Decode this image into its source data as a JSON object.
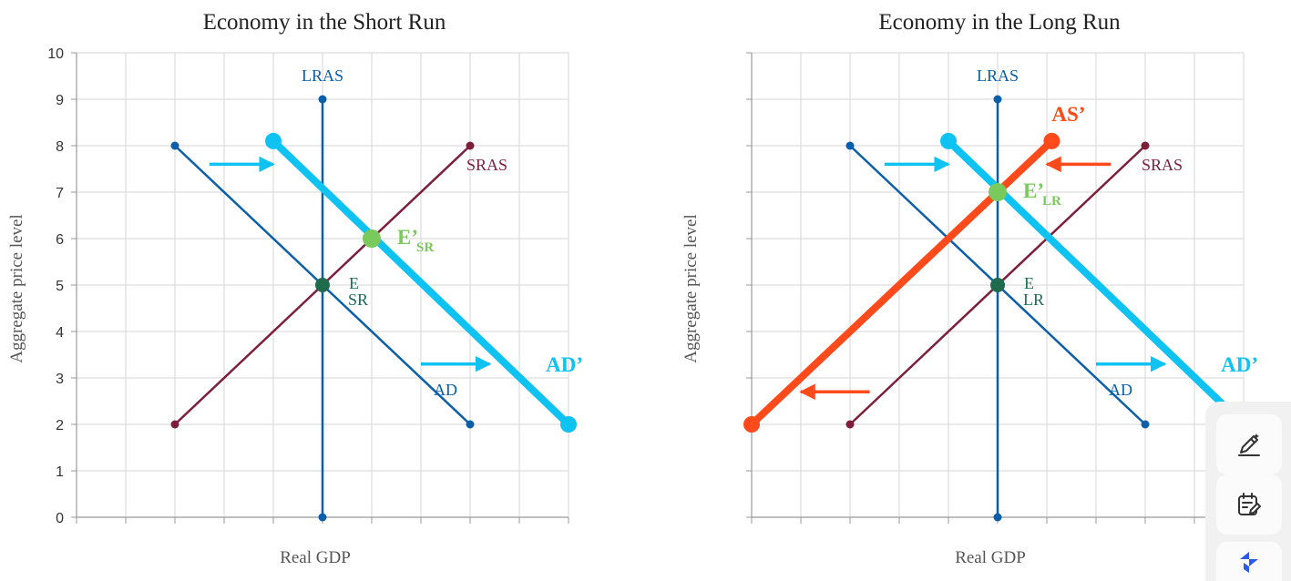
{
  "colors": {
    "ad": "#0a5fa8",
    "lras": "#0a5fa8",
    "sras": "#7d1f3a",
    "ad_shift": "#0ec2f2",
    "as_shift": "#ff4a1c",
    "eq_short": "#1f6b4e",
    "eq_new": "#7ac95c",
    "grid": "#d6d6d6"
  },
  "chart_data": [
    {
      "type": "line",
      "title": "Economy in the Short Run",
      "xlabel": "Real GDP",
      "ylabel": "Aggregate price level",
      "ylim": [
        0,
        10
      ],
      "xlim": [
        0,
        10
      ],
      "y_ticks": [
        "0",
        "1",
        "2",
        "3",
        "4",
        "5",
        "6",
        "7",
        "8",
        "9",
        "10"
      ],
      "grid": true,
      "series": [
        {
          "name": "LRAS",
          "points": [
            [
              5,
              0
            ],
            [
              5,
              9
            ]
          ],
          "color": "lras"
        },
        {
          "name": "SRAS",
          "points": [
            [
              2,
              2
            ],
            [
              8,
              8
            ]
          ],
          "color": "sras"
        },
        {
          "name": "AD",
          "points": [
            [
              2,
              8
            ],
            [
              8,
              2
            ]
          ],
          "color": "ad"
        },
        {
          "name": "AD’",
          "points": [
            [
              4,
              8.1
            ],
            [
              10,
              2
            ]
          ],
          "color": "ad_shift",
          "bold": true
        }
      ],
      "equilibria": [
        {
          "label": "E",
          "sub": "SR",
          "x": 5,
          "y": 5,
          "color": "eq_short"
        },
        {
          "label": "E’",
          "sub": "SR",
          "x": 6,
          "y": 6,
          "color": "eq_new",
          "bold": true
        }
      ],
      "arrows": [
        {
          "from": [
            2.7,
            7.6
          ],
          "to": [
            4.0,
            7.6
          ],
          "color": "ad_shift"
        },
        {
          "from": [
            7.0,
            3.3
          ],
          "to": [
            8.4,
            3.3
          ],
          "color": "ad_shift"
        }
      ]
    },
    {
      "type": "line",
      "title": "Economy in the Long Run",
      "xlabel": "Real GDP",
      "ylabel": "Aggregate price level",
      "ylim": [
        0,
        10
      ],
      "xlim": [
        0,
        10
      ],
      "grid": true,
      "series": [
        {
          "name": "LRAS",
          "points": [
            [
              5,
              0
            ],
            [
              5,
              9
            ]
          ],
          "color": "lras"
        },
        {
          "name": "SRAS",
          "points": [
            [
              2,
              2
            ],
            [
              8,
              8
            ]
          ],
          "color": "sras"
        },
        {
          "name": "AD",
          "points": [
            [
              2,
              8
            ],
            [
              8,
              2
            ]
          ],
          "color": "ad"
        },
        {
          "name": "AD’",
          "points": [
            [
              4,
              8.1
            ],
            [
              10,
              2
            ]
          ],
          "color": "ad_shift",
          "bold": true
        },
        {
          "name": "AS’",
          "points": [
            [
              0,
              2
            ],
            [
              6.1,
              8.1
            ]
          ],
          "color": "as_shift",
          "bold": true
        }
      ],
      "equilibria": [
        {
          "label": "E",
          "sub": "LR",
          "x": 5,
          "y": 5,
          "color": "eq_short"
        },
        {
          "label": "E’",
          "sub": "LR",
          "x": 5,
          "y": 7,
          "color": "eq_new",
          "bold": true
        }
      ],
      "arrows": [
        {
          "from": [
            2.7,
            7.6
          ],
          "to": [
            4.0,
            7.6
          ],
          "color": "ad_shift"
        },
        {
          "from": [
            7.0,
            3.3
          ],
          "to": [
            8.4,
            3.3
          ],
          "color": "ad_shift"
        },
        {
          "from": [
            7.3,
            7.6
          ],
          "to": [
            6.0,
            7.6
          ],
          "color": "as_shift"
        },
        {
          "from": [
            2.4,
            2.7
          ],
          "to": [
            1.0,
            2.7
          ],
          "color": "as_shift"
        }
      ]
    }
  ],
  "toolbar": {
    "buttons": [
      {
        "icon": "pencil-sparkle-icon"
      },
      {
        "icon": "calendar-edit-icon"
      },
      {
        "icon": "app-logo-icon"
      }
    ]
  }
}
